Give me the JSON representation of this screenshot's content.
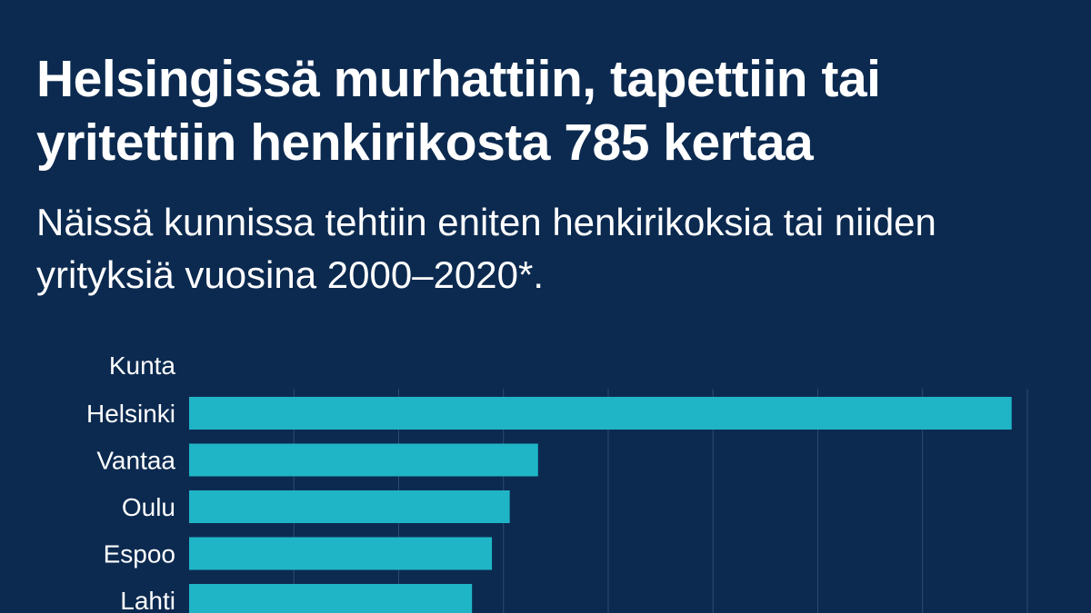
{
  "chart_data": {
    "type": "bar",
    "orientation": "horizontal",
    "title": "Helsingissä murhattiin, tapettiin tai yritettiin henkirikosta 785 kertaa",
    "subtitle": "Näissä kunnissa tehtiin eniten henkirikoksia tai niiden yrityksiä vuosina 2000–2020*.",
    "category_axis_title": "Kunta",
    "categories": [
      "Helsinki",
      "Vantaa",
      "Oulu",
      "Espoo",
      "Lahti"
    ],
    "values": [
      785,
      333,
      306,
      289,
      270
    ],
    "xlim": [
      0,
      800
    ],
    "grid": true,
    "colors": {
      "background": "#0c2a50",
      "bar": "#1fb5c6",
      "grid": "#2c4a72",
      "text": "#ffffff"
    }
  }
}
